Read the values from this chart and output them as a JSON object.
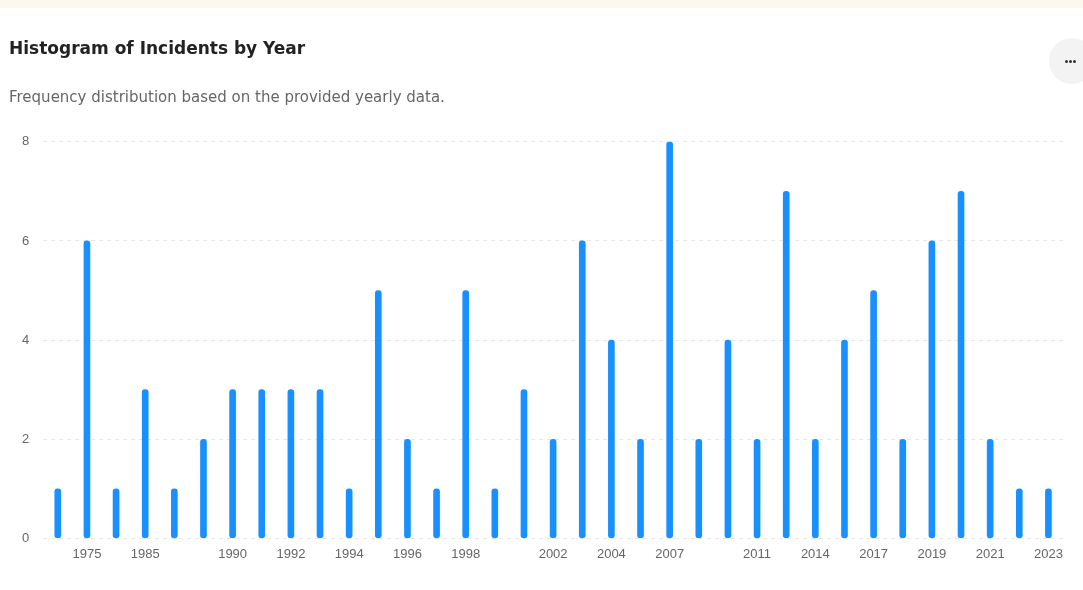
{
  "chart_data": {
    "type": "bar",
    "title": "Histogram of Incidents by Year",
    "subtitle": "Frequency distribution based on the provided yearly data.",
    "categories": [
      null,
      "1975",
      null,
      "1985",
      null,
      null,
      "1990",
      null,
      "1992",
      null,
      "1994",
      null,
      "1996",
      null,
      "1998",
      null,
      null,
      "2002",
      null,
      "2004",
      null,
      "2007",
      null,
      null,
      "2011",
      null,
      "2014",
      null,
      "2017",
      null,
      "2019",
      null,
      "2021",
      null,
      "2023"
    ],
    "values": [
      1,
      6,
      1,
      3,
      1,
      2,
      3,
      3,
      3,
      3,
      1,
      5,
      2,
      1,
      5,
      1,
      3,
      2,
      6,
      4,
      2,
      8,
      2,
      4,
      2,
      7,
      2,
      4,
      5,
      2,
      6,
      7,
      2,
      1,
      1
    ],
    "color": "#1890ff",
    "ylim": [
      0,
      8
    ],
    "yticks": [
      0,
      2,
      4,
      6,
      8
    ],
    "grid": "y"
  }
}
